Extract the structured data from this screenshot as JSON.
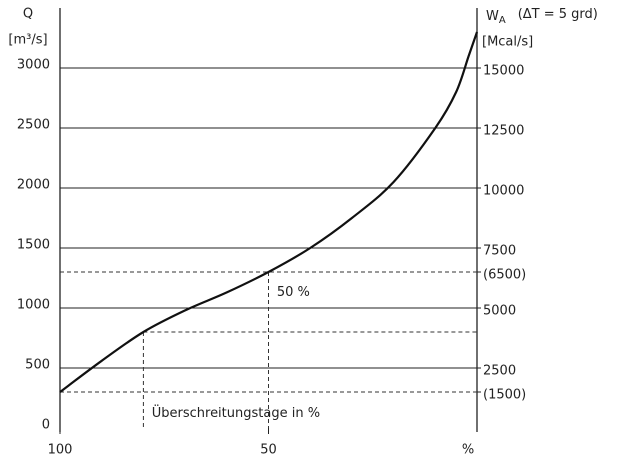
{
  "chart_data": {
    "type": "line",
    "ylabel": "Q",
    "yunit": "[m³/s]",
    "y2label": {
      "symbol": "W",
      "subscript": "A",
      "note": "(ΔT = 5 grd)",
      "unit": "[Mcal/s]"
    },
    "xlabel": "%",
    "x": [
      100,
      90,
      80,
      70,
      60,
      50,
      40,
      30,
      20,
      10,
      5,
      2,
      0
    ],
    "series": [
      {
        "color": "#111111",
        "values": [
          300,
          560,
          800,
          980,
          1130,
          1300,
          1500,
          1750,
          2050,
          2500,
          2800,
          3100,
          3300
        ]
      }
    ],
    "xlim": [
      100,
      0
    ],
    "xticks": [
      100,
      50
    ],
    "ylim": [
      0,
      3500
    ],
    "yticks": [
      0,
      500,
      1000,
      1500,
      2000,
      2500,
      3000
    ],
    "y2lim": [
      0,
      17500
    ],
    "y2ticks": [
      {
        "value": 1500,
        "label": "(1500)"
      },
      2500,
      5000,
      {
        "value": 6500,
        "label": "(6500)"
      },
      7500,
      10000,
      12500,
      15000
    ],
    "grid": true,
    "reference_lines": [
      {
        "y": 300,
        "from_x": 100
      },
      {
        "y": 800,
        "from_x": 80
      },
      {
        "y": 1300,
        "from_x": 100
      }
    ],
    "reference_verticals": [
      {
        "x": 80,
        "to_y": 800
      },
      {
        "x": 50,
        "to_y": 1300
      }
    ],
    "annotations": [
      {
        "text": "50 %",
        "x": 48,
        "y": 1130
      },
      {
        "text": "Überschreitungstage in %",
        "x": 78,
        "y": 120
      }
    ]
  }
}
